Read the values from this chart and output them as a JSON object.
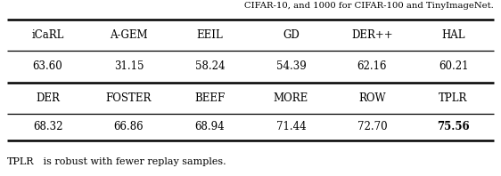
{
  "header_row1": [
    "iCaRL",
    "A-GEM",
    "EEIL",
    "GD",
    "DER++",
    "HAL"
  ],
  "values_row1": [
    "63.60",
    "31.15",
    "58.24",
    "54.39",
    "62.16",
    "60.21"
  ],
  "header_row2": [
    "DER",
    "FOSTER",
    "BEEF",
    "MORE",
    "ROW",
    "TPLR"
  ],
  "values_row2": [
    "68.32",
    "66.86",
    "68.94",
    "71.44",
    "72.70",
    "75.56"
  ],
  "bold_value_idx": 5,
  "top_text": "CIFAR-10, and 1000 for CIFAR-100 and TinyImageNet.",
  "bottom_text_sc": "TPLR",
  "bottom_text_rest": " is robust with fewer replay samples.",
  "text_color": "#000000",
  "line_color": "#000000",
  "bg_color": "#ffffff",
  "fig_width": 5.62,
  "fig_height": 1.98,
  "dpi": 100
}
